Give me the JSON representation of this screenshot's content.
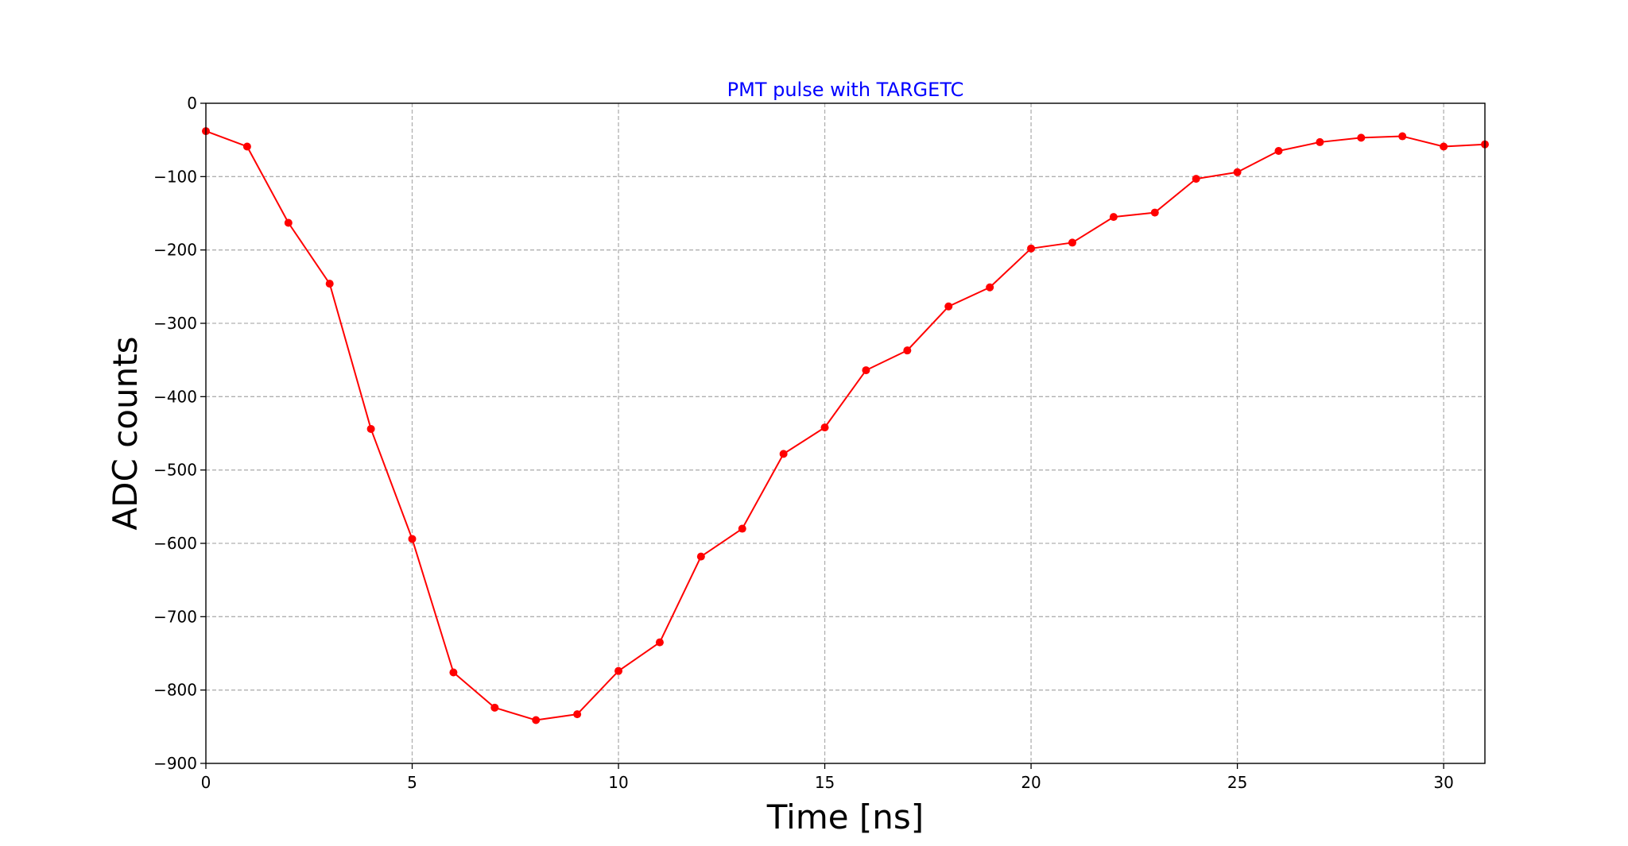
{
  "chart_data": {
    "type": "line",
    "title": "PMT pulse with TARGETC",
    "xlabel": "Time [ns]",
    "ylabel": "ADC counts",
    "xlim": [
      0,
      31
    ],
    "ylim": [
      -900,
      0
    ],
    "xticks": [
      0,
      5,
      10,
      15,
      20,
      25,
      30
    ],
    "yticks": [
      0,
      -100,
      -200,
      -300,
      -400,
      -500,
      -600,
      -700,
      -800,
      -900
    ],
    "xtick_labels": [
      "0",
      "5",
      "10",
      "15",
      "20",
      "25",
      "30"
    ],
    "ytick_labels": [
      "0",
      "−100",
      "−200",
      "−300",
      "−400",
      "−500",
      "−600",
      "−700",
      "−800",
      "−900"
    ],
    "grid": true,
    "series": [
      {
        "color": "#ff0000",
        "marker": "circle",
        "x": [
          0,
          1,
          2,
          3,
          4,
          5,
          6,
          7,
          8,
          9,
          10,
          11,
          12,
          13,
          14,
          15,
          16,
          17,
          18,
          19,
          20,
          21,
          22,
          23,
          24,
          25,
          26,
          27,
          28,
          29,
          30,
          31
        ],
        "values": [
          -38,
          -59,
          -163,
          -246,
          -444,
          -594,
          -776,
          -824,
          -841,
          -833,
          -774,
          -735,
          -618,
          -580,
          -478,
          -442,
          -364,
          -337,
          -277,
          -251,
          -198,
          -190,
          -155,
          -149,
          -103,
          -94,
          -65,
          -53,
          -47,
          -45,
          -59,
          -56
        ]
      }
    ],
    "colors": {
      "title": "#0000ff",
      "series": "#ff0000",
      "grid": "#b0b0b0",
      "axis": "#000000"
    }
  }
}
